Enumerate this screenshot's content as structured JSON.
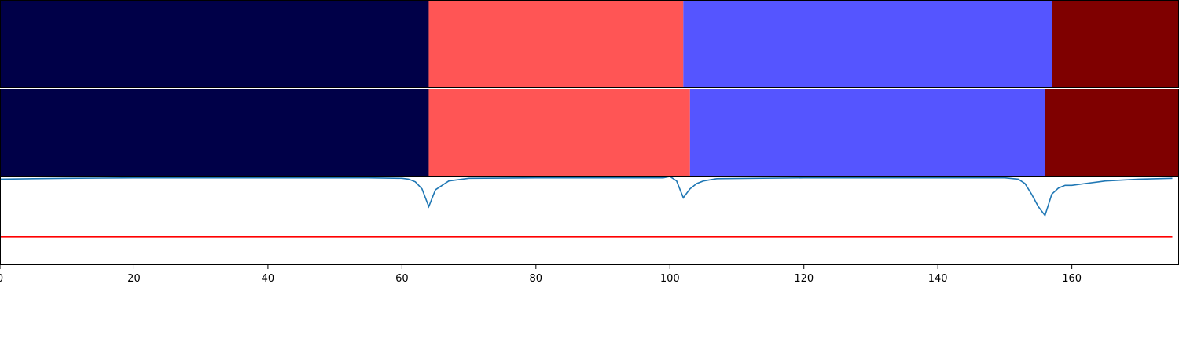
{
  "chart_data": [
    {
      "type": "heatmap",
      "panel": "segmentation-top",
      "xlim": [
        0,
        176
      ],
      "segments": [
        {
          "start": 0,
          "end": 64,
          "color": "#000048"
        },
        {
          "start": 64,
          "end": 102,
          "color": "#ff5555"
        },
        {
          "start": 102,
          "end": 157,
          "color": "#5555ff"
        },
        {
          "start": 157,
          "end": 176,
          "color": "#7f0000"
        }
      ]
    },
    {
      "type": "heatmap",
      "panel": "segmentation-bottom",
      "xlim": [
        0,
        176
      ],
      "segments": [
        {
          "start": 0,
          "end": 64,
          "color": "#000048"
        },
        {
          "start": 64,
          "end": 103,
          "color": "#ff5555"
        },
        {
          "start": 103,
          "end": 156,
          "color": "#5555ff"
        },
        {
          "start": 156,
          "end": 176,
          "color": "#7f0000"
        }
      ]
    },
    {
      "type": "line",
      "panel": "score-plot",
      "xlim": [
        0,
        176
      ],
      "ylim": [
        0.0,
        1.0
      ],
      "xticks": [
        "0",
        "20",
        "40",
        "60",
        "80",
        "100",
        "120",
        "140",
        "160"
      ],
      "series": [
        {
          "color": "#1f77b4",
          "points": [
            [
              0,
              0.97
            ],
            [
              5,
              0.975
            ],
            [
              10,
              0.98
            ],
            [
              20,
              0.985
            ],
            [
              40,
              0.985
            ],
            [
              55,
              0.985
            ],
            [
              60,
              0.98
            ],
            [
              61,
              0.97
            ],
            [
              62,
              0.94
            ],
            [
              63,
              0.86
            ],
            [
              64,
              0.66
            ],
            [
              65,
              0.85
            ],
            [
              66,
              0.9
            ],
            [
              67,
              0.95
            ],
            [
              70,
              0.98
            ],
            [
              80,
              0.985
            ],
            [
              99,
              0.985
            ],
            [
              100,
              1.0
            ],
            [
              101,
              0.95
            ],
            [
              102,
              0.76
            ],
            [
              103,
              0.86
            ],
            [
              104,
              0.92
            ],
            [
              105,
              0.95
            ],
            [
              107,
              0.975
            ],
            [
              120,
              0.985
            ],
            [
              150,
              0.985
            ],
            [
              152,
              0.97
            ],
            [
              153,
              0.92
            ],
            [
              154,
              0.8
            ],
            [
              155,
              0.66
            ],
            [
              156,
              0.56
            ],
            [
              157,
              0.8
            ],
            [
              158,
              0.87
            ],
            [
              159,
              0.9
            ],
            [
              160,
              0.9
            ],
            [
              162,
              0.92
            ],
            [
              165,
              0.95
            ],
            [
              170,
              0.97
            ],
            [
              175,
              0.98
            ]
          ]
        },
        {
          "color": "#ff0000",
          "points": [
            [
              0,
              0.32
            ],
            [
              175,
              0.32
            ]
          ]
        }
      ]
    }
  ]
}
